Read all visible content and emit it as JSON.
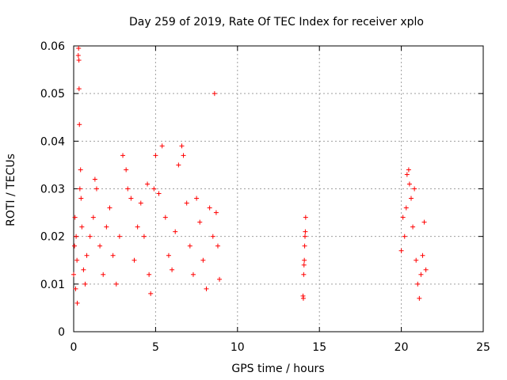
{
  "chart_data": {
    "type": "scatter",
    "title": "Day 259 of 2019, Rate Of TEC Index for receiver xplo",
    "xlabel": "GPS time / hours",
    "ylabel": "ROTI / TECUs",
    "xlim": [
      0,
      25
    ],
    "ylim": [
      0,
      0.06
    ],
    "xticks": [
      "0",
      "5",
      "10",
      "15",
      "20",
      "25"
    ],
    "yticks": [
      "0",
      "0.01",
      "0.02",
      "0.03",
      "0.04",
      "0.05",
      "0.06"
    ],
    "grid": true,
    "marker": "+",
    "color": "#ff0000",
    "series": [
      {
        "points": [
          [
            0.0,
            0.012
          ],
          [
            0.05,
            0.018
          ],
          [
            0.08,
            0.024
          ],
          [
            0.12,
            0.009
          ],
          [
            0.15,
            0.02
          ],
          [
            0.2,
            0.015
          ],
          [
            0.22,
            0.006
          ],
          [
            0.28,
            0.058
          ],
          [
            0.3,
            0.0595
          ],
          [
            0.32,
            0.057
          ],
          [
            0.33,
            0.051
          ],
          [
            0.35,
            0.0435
          ],
          [
            0.38,
            0.03
          ],
          [
            0.42,
            0.034
          ],
          [
            0.45,
            0.028
          ],
          [
            0.5,
            0.022
          ],
          [
            0.6,
            0.013
          ],
          [
            0.7,
            0.01
          ],
          [
            0.8,
            0.016
          ],
          [
            1.0,
            0.02
          ],
          [
            1.2,
            0.024
          ],
          [
            1.3,
            0.032
          ],
          [
            1.4,
            0.03
          ],
          [
            1.6,
            0.018
          ],
          [
            1.8,
            0.012
          ],
          [
            2.0,
            0.022
          ],
          [
            2.2,
            0.026
          ],
          [
            2.4,
            0.016
          ],
          [
            2.6,
            0.01
          ],
          [
            2.8,
            0.02
          ],
          [
            3.0,
            0.037
          ],
          [
            3.2,
            0.034
          ],
          [
            3.3,
            0.03
          ],
          [
            3.5,
            0.028
          ],
          [
            3.7,
            0.015
          ],
          [
            3.9,
            0.022
          ],
          [
            4.1,
            0.027
          ],
          [
            4.3,
            0.02
          ],
          [
            4.5,
            0.031
          ],
          [
            4.6,
            0.012
          ],
          [
            4.7,
            0.008
          ],
          [
            4.9,
            0.03
          ],
          [
            5.0,
            0.037
          ],
          [
            5.2,
            0.029
          ],
          [
            5.4,
            0.039
          ],
          [
            5.6,
            0.024
          ],
          [
            5.8,
            0.016
          ],
          [
            6.0,
            0.013
          ],
          [
            6.2,
            0.021
          ],
          [
            6.4,
            0.035
          ],
          [
            6.6,
            0.039
          ],
          [
            6.7,
            0.037
          ],
          [
            6.9,
            0.027
          ],
          [
            7.1,
            0.018
          ],
          [
            7.3,
            0.012
          ],
          [
            7.5,
            0.028
          ],
          [
            7.7,
            0.023
          ],
          [
            7.9,
            0.015
          ],
          [
            8.1,
            0.009
          ],
          [
            8.3,
            0.026
          ],
          [
            8.5,
            0.02
          ],
          [
            8.6,
            0.05
          ],
          [
            8.7,
            0.025
          ],
          [
            8.8,
            0.018
          ],
          [
            8.9,
            0.011
          ],
          [
            14.0,
            0.0075
          ],
          [
            14.02,
            0.007
          ],
          [
            14.04,
            0.012
          ],
          [
            14.06,
            0.014
          ],
          [
            14.08,
            0.015
          ],
          [
            14.1,
            0.018
          ],
          [
            14.12,
            0.02
          ],
          [
            14.14,
            0.021
          ],
          [
            14.16,
            0.024
          ],
          [
            20.0,
            0.017
          ],
          [
            20.1,
            0.024
          ],
          [
            20.2,
            0.02
          ],
          [
            20.3,
            0.026
          ],
          [
            20.35,
            0.033
          ],
          [
            20.45,
            0.034
          ],
          [
            20.5,
            0.031
          ],
          [
            20.6,
            0.028
          ],
          [
            20.7,
            0.022
          ],
          [
            20.8,
            0.03
          ],
          [
            20.9,
            0.015
          ],
          [
            21.0,
            0.01
          ],
          [
            21.1,
            0.007
          ],
          [
            21.2,
            0.012
          ],
          [
            21.3,
            0.016
          ],
          [
            21.4,
            0.023
          ],
          [
            21.5,
            0.013
          ]
        ]
      }
    ]
  }
}
